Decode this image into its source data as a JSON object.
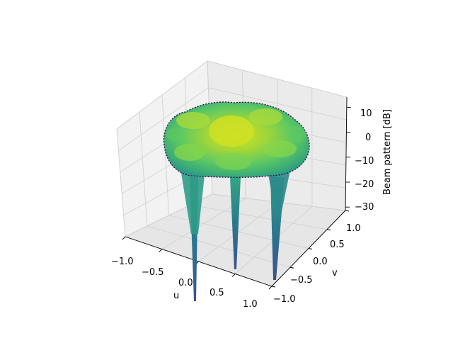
{
  "chart_data": {
    "type": "surface",
    "xlabel": "u",
    "ylabel": "v",
    "zlabel": "Beam pattern [dB]",
    "x_ticks": [
      "−1.0",
      "−0.5",
      "0.0",
      "0.5",
      "1.0"
    ],
    "y_ticks": [
      "−1.0",
      "−0.5",
      "0.0",
      "0.5",
      "1.0"
    ],
    "z_ticks": [
      "−30",
      "−20",
      "−10",
      "0",
      "10"
    ],
    "x_range": [
      -1.0,
      1.0
    ],
    "y_range": [
      -1.0,
      1.0
    ],
    "z_range": [
      -30,
      15
    ],
    "colormap": "viridis",
    "grid": true,
    "surface_peak": 13,
    "surface_sidelobe_level": 7,
    "surface_edge_level": -8,
    "null_depth": -30
  }
}
